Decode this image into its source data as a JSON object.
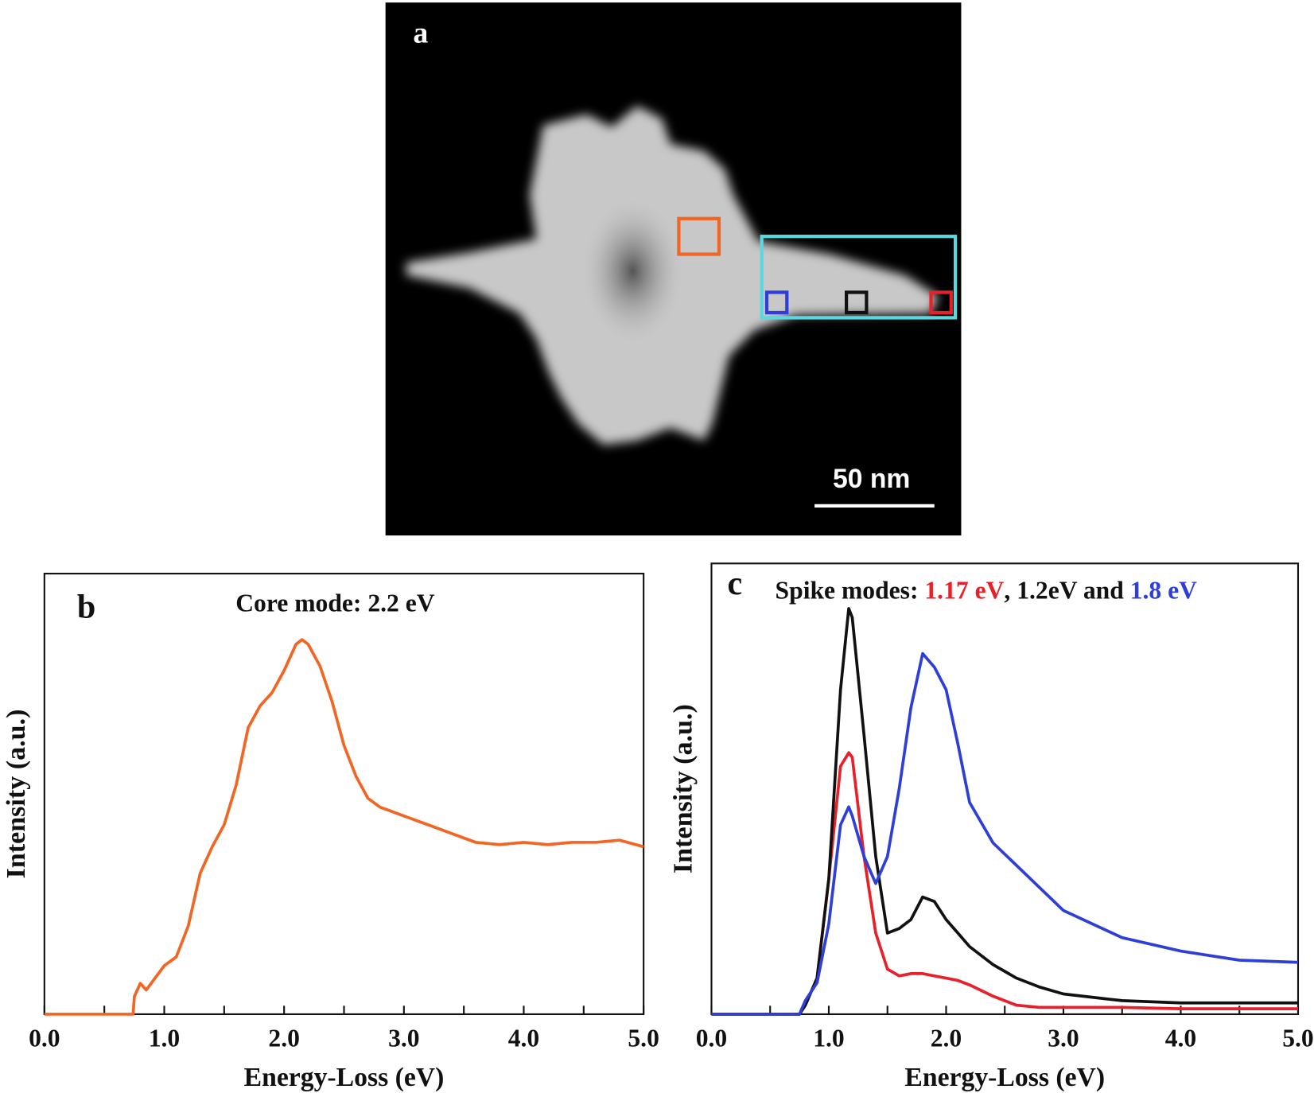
{
  "panel_a": {
    "label": "a",
    "scale_bar": "50 nm"
  },
  "chart_data": [
    {
      "type": "line",
      "label": "b",
      "title": [
        "Core mode: 2.2 eV"
      ],
      "title_colors": [
        "#111111"
      ],
      "xlabel": "Energy-Loss (eV)",
      "ylabel": "Intensity (a.u.)",
      "xlim": [
        0,
        5
      ],
      "ylim": [
        0,
        1
      ],
      "xticks": [
        {
          "value": 0,
          "label": "0.0"
        },
        {
          "value": 1,
          "label": "1.0"
        },
        {
          "value": 2,
          "label": "2.0"
        },
        {
          "value": 3,
          "label": "3.0"
        },
        {
          "value": 4,
          "label": "4.0"
        },
        {
          "value": 5,
          "label": "5.0"
        }
      ],
      "xminor": [
        0.5,
        1.5,
        2.5,
        3.5,
        4.5
      ],
      "x": [
        0,
        0.74,
        0.75,
        0.8,
        0.85,
        1.0,
        1.1,
        1.2,
        1.3,
        1.4,
        1.5,
        1.6,
        1.7,
        1.8,
        1.9,
        2.0,
        2.1,
        2.15,
        2.2,
        2.3,
        2.4,
        2.5,
        2.6,
        2.7,
        2.8,
        2.9,
        3.0,
        3.2,
        3.4,
        3.6,
        3.8,
        4.0,
        4.2,
        4.4,
        4.6,
        4.8,
        5.0
      ],
      "series": [
        {
          "color": "#f26522",
          "values": [
            0,
            0,
            0.04,
            0.07,
            0.055,
            0.11,
            0.13,
            0.2,
            0.32,
            0.38,
            0.43,
            0.52,
            0.65,
            0.7,
            0.73,
            0.78,
            0.84,
            0.85,
            0.84,
            0.79,
            0.71,
            0.61,
            0.54,
            0.49,
            0.47,
            0.46,
            0.45,
            0.43,
            0.41,
            0.39,
            0.385,
            0.39,
            0.385,
            0.39,
            0.39,
            0.395,
            0.38
          ]
        }
      ]
    },
    {
      "type": "line",
      "label": "c",
      "title": [
        "Spike modes: ",
        "1.17 eV",
        ", 1.2eV and ",
        "1.8 eV"
      ],
      "title_colors": [
        "#111111",
        "#e8202a",
        "#111111",
        "#2d3fd8"
      ],
      "xlabel": "Energy-Loss (eV)",
      "ylabel": "Intensity (a.u.)",
      "xlim": [
        0,
        5
      ],
      "ylim": [
        0,
        1
      ],
      "xticks": [
        {
          "value": 0,
          "label": "0.0"
        },
        {
          "value": 1,
          "label": "1.0"
        },
        {
          "value": 2,
          "label": "2.0"
        },
        {
          "value": 3,
          "label": "3.0"
        },
        {
          "value": 4,
          "label": "4.0"
        },
        {
          "value": 5,
          "label": "5.0"
        }
      ],
      "xminor": [
        0.5,
        1.5,
        2.5,
        3.5,
        4.5
      ],
      "x": [
        0,
        0.75,
        0.8,
        0.9,
        1.0,
        1.1,
        1.17,
        1.2,
        1.3,
        1.4,
        1.5,
        1.6,
        1.7,
        1.8,
        1.9,
        2.0,
        2.1,
        2.2,
        2.4,
        2.6,
        2.8,
        3.0,
        3.5,
        4.0,
        4.5,
        5.0
      ],
      "series": [
        {
          "color": "#e8202a",
          "values": [
            0,
            0,
            0.02,
            0.08,
            0.3,
            0.55,
            0.58,
            0.57,
            0.35,
            0.18,
            0.1,
            0.085,
            0.09,
            0.09,
            0.085,
            0.08,
            0.075,
            0.065,
            0.04,
            0.02,
            0.015,
            0.015,
            0.015,
            0.012,
            0.012,
            0.012
          ]
        },
        {
          "color": "#111111",
          "values": [
            0,
            0,
            0.02,
            0.08,
            0.3,
            0.72,
            0.9,
            0.88,
            0.62,
            0.35,
            0.18,
            0.19,
            0.21,
            0.26,
            0.25,
            0.21,
            0.18,
            0.15,
            0.11,
            0.08,
            0.06,
            0.045,
            0.03,
            0.025,
            0.025,
            0.025
          ]
        },
        {
          "color": "#2d3fd8",
          "values": [
            0,
            0,
            0.03,
            0.07,
            0.2,
            0.42,
            0.46,
            0.44,
            0.35,
            0.29,
            0.35,
            0.5,
            0.68,
            0.8,
            0.77,
            0.72,
            0.6,
            0.47,
            0.38,
            0.33,
            0.28,
            0.23,
            0.17,
            0.14,
            0.12,
            0.115
          ]
        }
      ]
    }
  ]
}
